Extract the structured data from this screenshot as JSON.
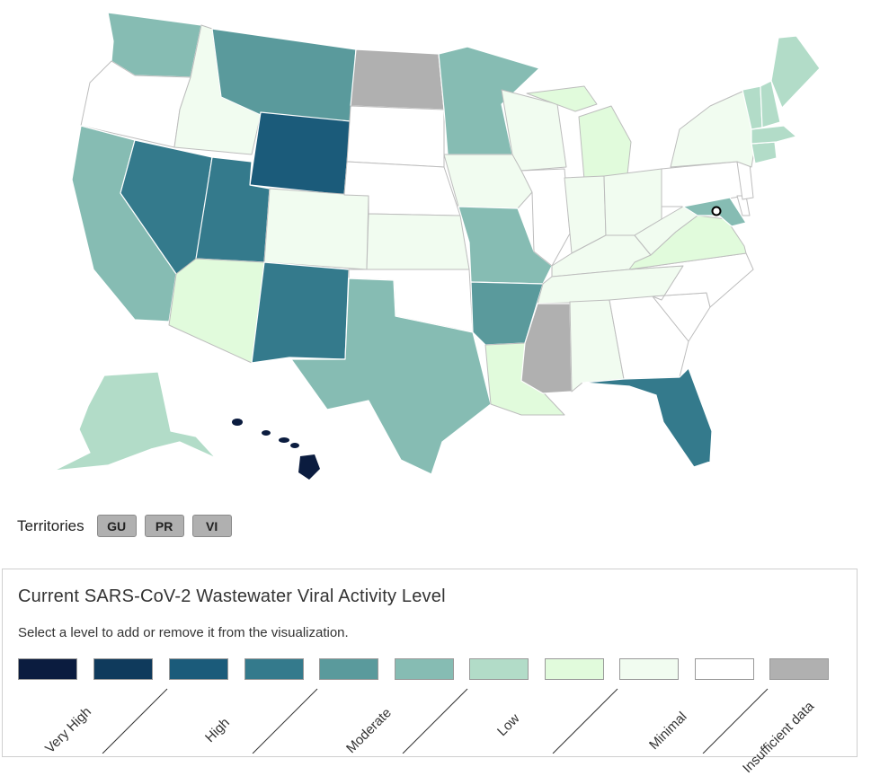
{
  "territories": {
    "label": "Territories",
    "buttons": [
      "GU",
      "PR",
      "VI"
    ]
  },
  "legend": {
    "title": "Current SARS-CoV-2 Wastewater Viral Activity Level",
    "subtitle": "Select a level to add or remove it from the visualization.",
    "levels": [
      {
        "name": "very-high-1",
        "color": "#0b1c3f"
      },
      {
        "name": "very-high-2",
        "color": "#0f3a5c"
      },
      {
        "name": "high-1",
        "color": "#1b5b7a"
      },
      {
        "name": "high-2",
        "color": "#347a8c"
      },
      {
        "name": "moderate-1",
        "color": "#5a9a9c"
      },
      {
        "name": "moderate-2",
        "color": "#86bcb3"
      },
      {
        "name": "low-1",
        "color": "#b2dcc8"
      },
      {
        "name": "low-2",
        "color": "#e1fbdc"
      },
      {
        "name": "minimal",
        "color": "#f1fcf0"
      },
      {
        "name": "no-data",
        "color": "#ffffff"
      },
      {
        "name": "insufficient-data",
        "color": "#b0b0b0"
      }
    ],
    "labels": {
      "very_high": "Very High",
      "high": "High",
      "moderate": "Moderate",
      "low": "Low",
      "minimal": "Minimal",
      "insufficient": "Insufficient data"
    }
  },
  "map": {
    "colors": {
      "very_high": "#0b1c3f",
      "high_dark": "#1b5b7a",
      "high": "#347a8c",
      "moderate_dark": "#5a9a9c",
      "moderate": "#86bcb3",
      "low": "#b2dcc8",
      "low_light": "#e1fbdc",
      "minimal": "#f1fcf0",
      "none": "#ffffff",
      "insufficient": "#b0b0b0"
    }
  }
}
